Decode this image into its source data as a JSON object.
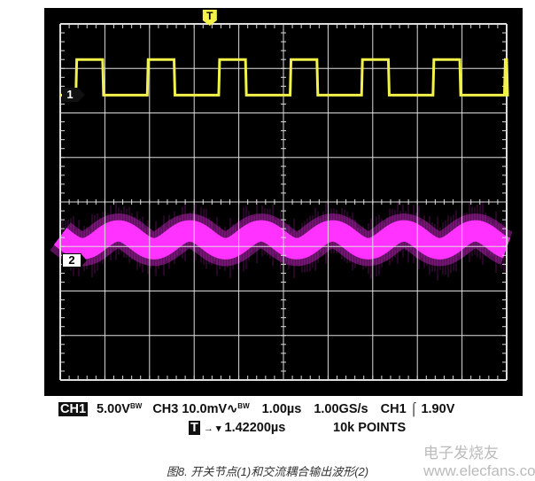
{
  "chart_data": {
    "type": "line",
    "title": "",
    "grid": true,
    "x_divisions": 10,
    "y_divisions": 8,
    "time_per_div_us": 1.0,
    "series": [
      {
        "name": "1",
        "channel": "CH1",
        "color": "#f2f24a",
        "waveform": "square",
        "period_us": 1.6,
        "pulse_width_us": 0.6,
        "low_div": 2.4,
        "high_div": 3.2,
        "first_rise_us": 0.35
      },
      {
        "name": "2",
        "channel": "CH3",
        "color": "#ff33ff",
        "waveform": "sine_noisy",
        "period_us": 1.6,
        "center_div": -0.85,
        "amplitude_div": 0.2,
        "noise_band_div": 0.6,
        "first_peak_us": 1.3
      }
    ],
    "channel_markers": [
      "1",
      "2"
    ],
    "trigger_marker": "T"
  },
  "status": {
    "ch1_label": "CH1",
    "ch1_scale": "5.00V",
    "ch1_bw": "BW",
    "ch3_scale": "CH3 10.0mV",
    "ch3_coupling": "∿",
    "ch3_bw": "BW",
    "timebase": "1.00µs",
    "sample_rate": "1.00GS/s",
    "trigger_source": "CH1",
    "trigger_slope": "⌠",
    "trigger_level": "1.90V",
    "trigger_label": "T",
    "trigger_arrow": "→ ▾",
    "trigger_position": "1.42200µs",
    "record_length": "10k POINTS"
  },
  "caption": "图8. 开关节点(1)和交流耦合输出波形(2)",
  "watermark": "电子发烧友 www.elecfans.com"
}
